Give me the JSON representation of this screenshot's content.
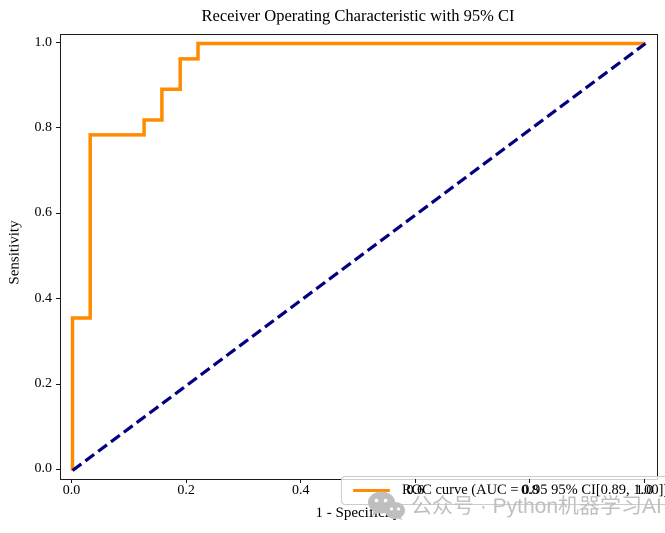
{
  "figure": {
    "title": "Receiver Operating Characteristic with 95% CI",
    "xlabel": "1 - Specificity",
    "ylabel": "Sensitivity",
    "watermark_text": "公众号 · Python机器学习AI"
  },
  "legend": {
    "roc_label": "ROC curve (AUC = 0.95 95% CI[0.89, 1.00])"
  },
  "colors": {
    "roc_curve": "#FF8C00",
    "chance_line": "#000080",
    "axis": "#1a1a1a",
    "watermark": "#bfbfbf"
  },
  "chart_data": {
    "type": "line",
    "title": "Receiver Operating Characteristic with 95% CI",
    "xlabel": "1 - Specificity",
    "ylabel": "Sensitivity",
    "xlim": [
      -0.02,
      1.02
    ],
    "ylim": [
      -0.02,
      1.02
    ],
    "x_ticks": [
      0.0,
      0.2,
      0.4,
      0.6,
      0.8,
      1.0
    ],
    "y_ticks": [
      0.0,
      0.2,
      0.4,
      0.6,
      0.8,
      1.0
    ],
    "grid": false,
    "legend_position": "lower right",
    "auc": 0.95,
    "ci_95": [
      0.89,
      1.0
    ],
    "series": [
      {
        "name": "ROC curve (AUC = 0.95 95% CI[0.89, 1.00])",
        "color": "#FF8C00",
        "style": "solid",
        "line_width": 3.5,
        "points": [
          [
            0.0,
            0.0
          ],
          [
            0.0,
            0.357
          ],
          [
            0.031,
            0.357
          ],
          [
            0.031,
            0.786
          ],
          [
            0.125,
            0.786
          ],
          [
            0.125,
            0.821
          ],
          [
            0.156,
            0.821
          ],
          [
            0.156,
            0.893
          ],
          [
            0.188,
            0.893
          ],
          [
            0.188,
            0.964
          ],
          [
            0.219,
            0.964
          ],
          [
            0.219,
            1.0
          ],
          [
            1.0,
            1.0
          ]
        ]
      },
      {
        "name": "chance-diagonal",
        "color": "#000080",
        "style": "dashed",
        "line_width": 3.2,
        "points": [
          [
            0.0,
            0.0
          ],
          [
            1.0,
            1.0
          ]
        ]
      }
    ]
  }
}
